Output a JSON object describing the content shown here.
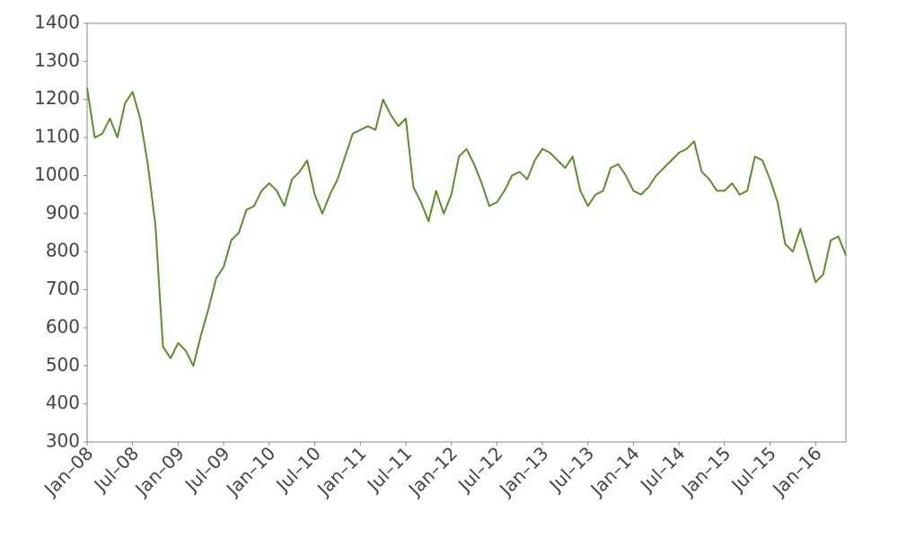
{
  "chart_data": {
    "type": "line",
    "x": [
      "2008-01",
      "2008-02",
      "2008-03",
      "2008-04",
      "2008-05",
      "2008-06",
      "2008-07",
      "2008-08",
      "2008-09",
      "2008-10",
      "2008-11",
      "2008-12",
      "2009-01",
      "2009-02",
      "2009-03",
      "2009-04",
      "2009-05",
      "2009-06",
      "2009-07",
      "2009-08",
      "2009-09",
      "2009-10",
      "2009-11",
      "2009-12",
      "2010-01",
      "2010-02",
      "2010-03",
      "2010-04",
      "2010-05",
      "2010-06",
      "2010-07",
      "2010-08",
      "2010-09",
      "2010-10",
      "2010-11",
      "2010-12",
      "2011-01",
      "2011-02",
      "2011-03",
      "2011-04",
      "2011-05",
      "2011-06",
      "2011-07",
      "2011-08",
      "2011-09",
      "2011-10",
      "2011-11",
      "2011-12",
      "2012-01",
      "2012-02",
      "2012-03",
      "2012-04",
      "2012-05",
      "2012-06",
      "2012-07",
      "2012-08",
      "2012-09",
      "2012-10",
      "2012-11",
      "2012-12",
      "2013-01",
      "2013-02",
      "2013-03",
      "2013-04",
      "2013-05",
      "2013-06",
      "2013-07",
      "2013-08",
      "2013-09",
      "2013-10",
      "2013-11",
      "2013-12",
      "2014-01",
      "2014-02",
      "2014-03",
      "2014-04",
      "2014-05",
      "2014-06",
      "2014-07",
      "2014-08",
      "2014-09",
      "2014-10",
      "2014-11",
      "2014-12",
      "2015-01",
      "2015-02",
      "2015-03",
      "2015-04",
      "2015-05",
      "2015-06",
      "2015-07",
      "2015-08",
      "2015-09",
      "2015-10",
      "2015-11",
      "2015-12",
      "2016-01",
      "2016-02",
      "2016-03",
      "2016-04",
      "2016-05"
    ],
    "series": [
      {
        "color": "#5a8f29",
        "values": [
          1230,
          1100,
          1110,
          1150,
          1100,
          1190,
          1220,
          1150,
          1030,
          870,
          550,
          520,
          560,
          540,
          500,
          580,
          650,
          730,
          760,
          830,
          850,
          910,
          920,
          960,
          980,
          960,
          920,
          990,
          1010,
          1040,
          950,
          900,
          950,
          990,
          1050,
          1110,
          1120,
          1130,
          1120,
          1200,
          1160,
          1130,
          1150,
          970,
          930,
          880,
          960,
          900,
          950,
          1050,
          1070,
          1030,
          980,
          920,
          930,
          960,
          1000,
          1010,
          990,
          1040,
          1070,
          1060,
          1040,
          1020,
          1050,
          960,
          920,
          950,
          960,
          1020,
          1030,
          1000,
          960,
          950,
          970,
          1000,
          1020,
          1040,
          1060,
          1070,
          1090,
          1010,
          990,
          960,
          960,
          980,
          950,
          960,
          1050,
          1040,
          990,
          930,
          820,
          800,
          860,
          790,
          720,
          740,
          830,
          840,
          790
        ]
      }
    ],
    "xlim": [
      "2008-01",
      "2016-05"
    ],
    "xticks": [
      {
        "value": "2008-01",
        "label": "Jan–08"
      },
      {
        "value": "2008-07",
        "label": "Jul–08"
      },
      {
        "value": "2009-01",
        "label": "Jan–09"
      },
      {
        "value": "2009-07",
        "label": "Jul–09"
      },
      {
        "value": "2010-01",
        "label": "Jan–10"
      },
      {
        "value": "2010-07",
        "label": "Jul–10"
      },
      {
        "value": "2011-01",
        "label": "Jan–11"
      },
      {
        "value": "2011-07",
        "label": "Jul–11"
      },
      {
        "value": "2012-01",
        "label": "Jan–12"
      },
      {
        "value": "2012-07",
        "label": "Jul–12"
      },
      {
        "value": "2013-01",
        "label": "Jan–13"
      },
      {
        "value": "2013-07",
        "label": "Jul–13"
      },
      {
        "value": "2014-01",
        "label": "Jan–14"
      },
      {
        "value": "2014-07",
        "label": "Jul–14"
      },
      {
        "value": "2015-01",
        "label": "Jan–15"
      },
      {
        "value": "2015-07",
        "label": "Jul–15"
      },
      {
        "value": "2016-01",
        "label": "Jan–16"
      }
    ],
    "ylim": [
      300,
      1400
    ],
    "yticks": [
      300,
      400,
      500,
      600,
      700,
      800,
      900,
      1000,
      1100,
      1200,
      1300,
      1400
    ]
  }
}
